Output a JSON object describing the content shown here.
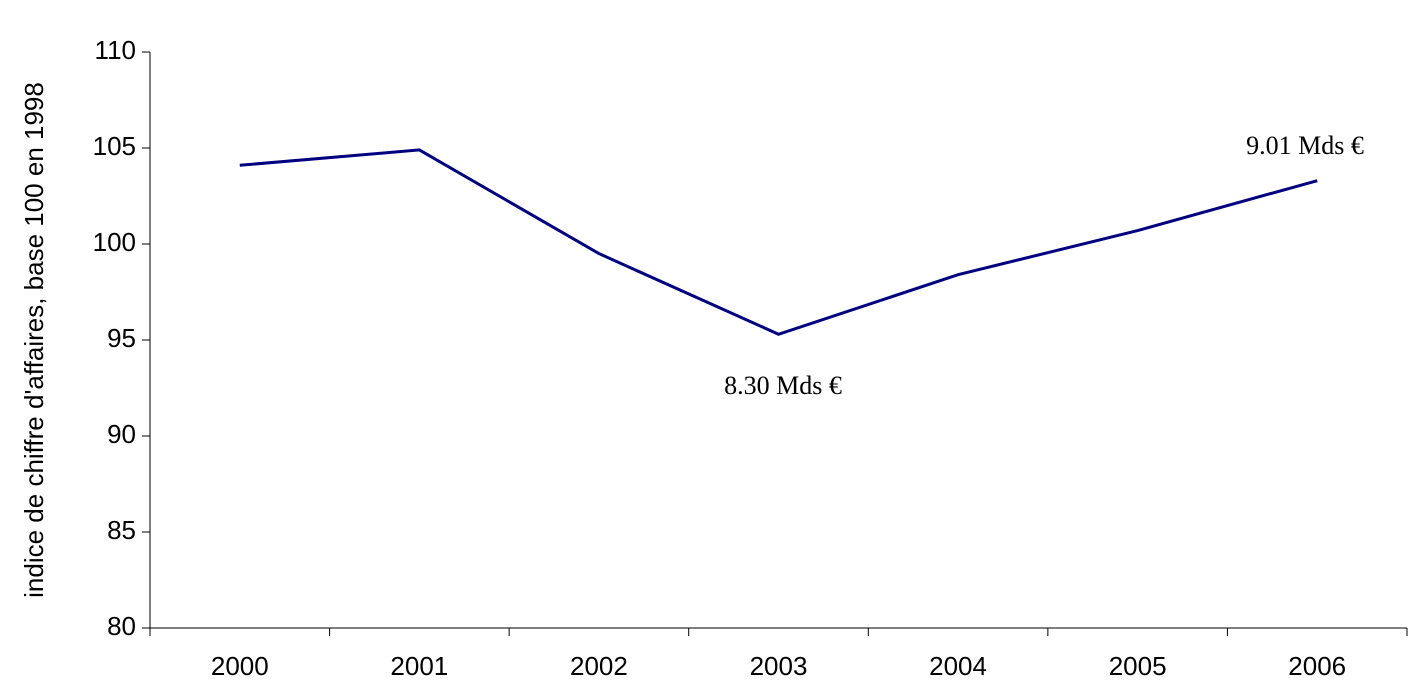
{
  "chart_data": {
    "type": "line",
    "ylabel": "indice de chiffre d'affaires, base 100 en 1998",
    "categories": [
      "2000",
      "2001",
      "2002",
      "2003",
      "2004",
      "2005",
      "2006"
    ],
    "series": [
      {
        "name": "indice",
        "color": "#000080",
        "values": [
          104.1,
          104.9,
          99.5,
          95.3,
          98.4,
          100.7,
          103.3
        ]
      }
    ],
    "ylim": [
      80,
      110
    ],
    "yticks": [
      80,
      85,
      90,
      95,
      100,
      105,
      110
    ],
    "annotations": [
      "8.30 Mds €",
      "9.01 Mds €"
    ]
  }
}
